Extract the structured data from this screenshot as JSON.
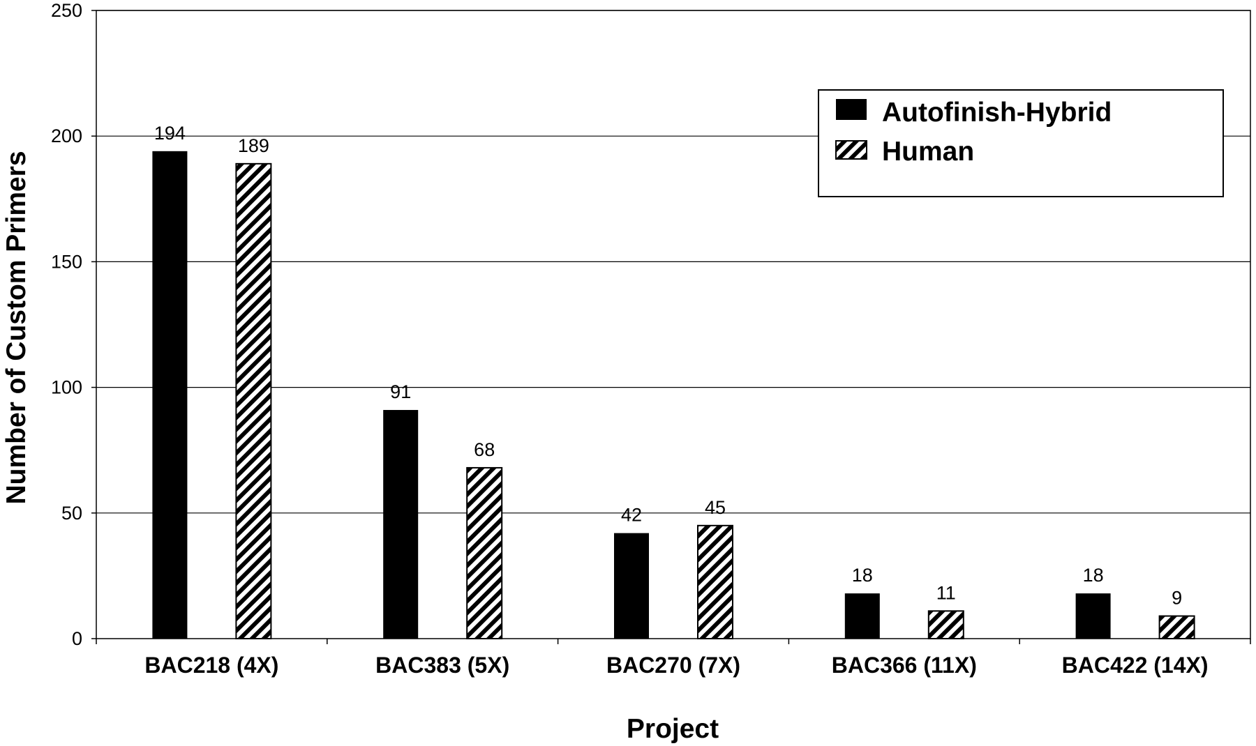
{
  "chart_data": {
    "type": "bar",
    "title": "",
    "xlabel": "Project",
    "ylabel": "Number of Custom Primers",
    "ylim": [
      0,
      250
    ],
    "yticks": [
      0,
      50,
      100,
      150,
      200,
      250
    ],
    "grid": true,
    "legend_position": "top-right",
    "categories": [
      "BAC218 (4X)",
      "BAC383 (5X)",
      "BAC270 (7X)",
      "BAC366 (11X)",
      "BAC422 (14X)"
    ],
    "series": [
      {
        "name": "Autofinish-Hybrid",
        "values": [
          194,
          91,
          42,
          18,
          18
        ],
        "fill": "solid",
        "color": "#000000"
      },
      {
        "name": "Human",
        "values": [
          189,
          68,
          45,
          11,
          9
        ],
        "fill": "hatched",
        "color": "#000000"
      }
    ]
  }
}
